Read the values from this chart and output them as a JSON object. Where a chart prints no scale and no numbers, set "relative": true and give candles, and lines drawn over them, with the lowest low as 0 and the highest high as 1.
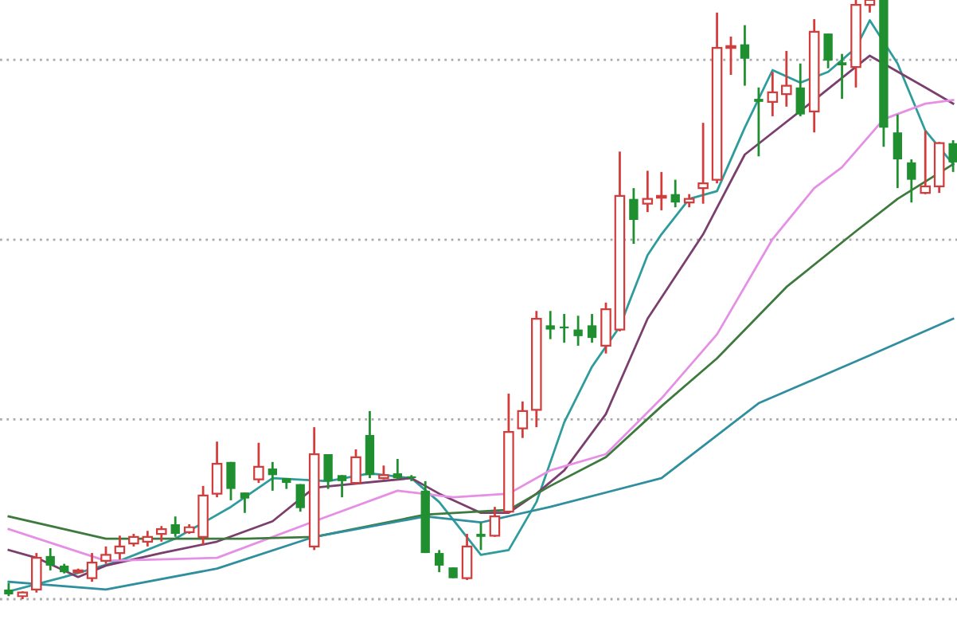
{
  "chart_data": {
    "type": "candlestick",
    "relative": true,
    "grid": "y",
    "categories": [
      null,
      null,
      null,
      null,
      null,
      null,
      null,
      null,
      null,
      null,
      null,
      null,
      null,
      null,
      null,
      null,
      null,
      null,
      null,
      null,
      null,
      null,
      null,
      null,
      null,
      null,
      null,
      null,
      null,
      null,
      null,
      null,
      null,
      null,
      null,
      null,
      null,
      null,
      null,
      null,
      null,
      null,
      null,
      null,
      null,
      null,
      null,
      null,
      null,
      null,
      null,
      null,
      null,
      null,
      null,
      null,
      null,
      null,
      null,
      null,
      null,
      null,
      null,
      null,
      null,
      null,
      null,
      null,
      null
    ],
    "ohlc": [
      [
        0.016,
        0.027,
        0.005,
        0.008
      ],
      [
        0.005,
        0.013,
        0,
        0.011
      ],
      [
        0.016,
        0.077,
        0.011,
        0.069
      ],
      [
        0.072,
        0.085,
        0.048,
        0.056
      ],
      [
        0.056,
        0.059,
        0.043,
        0.045
      ],
      [
        0.045,
        0.051,
        0.043,
        0.048
      ],
      [
        0.035,
        0.077,
        0.029,
        0.061
      ],
      [
        0.064,
        0.088,
        0.059,
        0.074
      ],
      [
        0.077,
        0.106,
        0.066,
        0.088
      ],
      [
        0.093,
        0.109,
        0.088,
        0.104
      ],
      [
        0.096,
        0.114,
        0.088,
        0.104
      ],
      [
        0.109,
        0.122,
        0.096,
        0.117
      ],
      [
        0.125,
        0.138,
        0.104,
        0.109
      ],
      [
        0.112,
        0.125,
        0.109,
        0.12
      ],
      [
        0.104,
        0.189,
        0.09,
        0.173
      ],
      [
        0.176,
        0.263,
        0.17,
        0.226
      ],
      [
        0.229,
        0.229,
        0.165,
        0.184
      ],
      [
        0.178,
        0.178,
        0.144,
        0.168
      ],
      [
        0.2,
        0.261,
        0.194,
        0.221
      ],
      [
        0.218,
        0.229,
        0.181,
        0.207
      ],
      [
        0.202,
        0.202,
        0.184,
        0.194
      ],
      [
        0.192,
        0.192,
        0.146,
        0.152
      ],
      [
        0.088,
        0.287,
        0.082,
        0.242
      ],
      [
        0.242,
        0.242,
        0.184,
        0.197
      ],
      [
        0.207,
        0.207,
        0.17,
        0.197
      ],
      [
        0.194,
        0.25,
        0.192,
        0.237
      ],
      [
        0.274,
        0.314,
        0.202,
        0.207
      ],
      [
        0.202,
        0.223,
        0.2,
        0.207
      ],
      [
        0.21,
        0.234,
        0.2,
        0.202
      ],
      [
        0.205,
        0.207,
        0.197,
        0.202
      ],
      [
        0.181,
        0.197,
        0.077,
        0.077
      ],
      [
        0.077,
        0.082,
        0.045,
        0.056
      ],
      [
        0.053,
        0.053,
        0.035,
        0.035
      ],
      [
        0.035,
        0.109,
        0.032,
        0.088
      ],
      [
        0.109,
        0.128,
        0.082,
        0.104
      ],
      [
        0.106,
        0.154,
        0.104,
        0.138
      ],
      [
        0.146,
        0.343,
        0.144,
        0.279
      ],
      [
        0.285,
        0.33,
        0.269,
        0.314
      ],
      [
        0.316,
        0.481,
        0.287,
        0.468
      ],
      [
        0.457,
        0.481,
        0.434,
        0.45
      ],
      [
        0.455,
        0.476,
        0.428,
        0.452
      ],
      [
        0.45,
        0.473,
        0.423,
        0.439
      ],
      [
        0.457,
        0.476,
        0.428,
        0.436
      ],
      [
        0.423,
        0.495,
        0.41,
        0.484
      ],
      [
        0.45,
        0.747,
        0.447,
        0.673
      ],
      [
        0.668,
        0.686,
        0.593,
        0.633
      ],
      [
        0.66,
        0.715,
        0.646,
        0.668
      ],
      [
        0.67,
        0.713,
        0.649,
        0.673
      ],
      [
        0.676,
        0.7,
        0.654,
        0.662
      ],
      [
        0.662,
        0.676,
        0.654,
        0.668
      ],
      [
        0.686,
        0.795,
        0.66,
        0.694
      ],
      [
        0.7,
        0.979,
        0.694,
        0.92
      ],
      [
        0.92,
        0.939,
        0.875,
        0.923
      ],
      [
        0.926,
        0.958,
        0.857,
        0.902
      ],
      [
        0.835,
        0.854,
        0.739,
        0.83
      ],
      [
        0.83,
        0.88,
        0.806,
        0.846
      ],
      [
        0.843,
        0.915,
        0.822,
        0.857
      ],
      [
        0.854,
        0.894,
        0.806,
        0.809
      ],
      [
        0.814,
        0.968,
        0.779,
        0.947
      ],
      [
        0.944,
        0.944,
        0.886,
        0.899
      ],
      [
        0.896,
        0.91,
        0.835,
        0.891
      ],
      [
        0.888,
        1,
        0.854,
        0.992
      ],
      [
        0.992,
        1,
        0.979,
        1
      ],
      [
        1,
        1,
        0.755,
        0.787
      ],
      [
        0.779,
        0.809,
        0.686,
        0.734
      ],
      [
        0.729,
        0.734,
        0.662,
        0.7
      ],
      [
        0.678,
        0.782,
        0.676,
        0.689
      ],
      [
        0.689,
        0.763,
        0.678,
        0.761
      ],
      [
        0.761,
        0.766,
        0.713,
        0.729
      ]
    ],
    "series": [
      {
        "type": "line",
        "color": "#2e9c9c",
        "values": [
          0.013,
          null,
          null,
          null,
          0.037,
          null,
          null,
          null,
          0.064,
          null,
          null,
          null,
          0.101,
          null,
          null,
          null,
          0.154,
          null,
          null,
          0.202,
          null,
          null,
          null,
          0.197,
          null,
          null,
          0.21,
          null,
          null,
          0.202,
          null,
          0.162,
          null,
          null,
          0.074,
          null,
          0.082,
          null,
          0.162,
          null,
          0.295,
          null,
          0.388,
          null,
          0.455,
          null,
          0.574,
          0.609,
          null,
          0.668,
          null,
          0.681,
          null,
          0.787,
          null,
          0.883,
          null,
          0.862,
          null,
          0.88,
          null,
          0.92,
          0.966,
          null,
          0.894,
          null,
          0.782,
          null,
          0.726
        ]
      },
      {
        "type": "line",
        "color": "#7b3f6e",
        "values": [
          0.082,
          null,
          0.069,
          null,
          null,
          0.037,
          null,
          0.056,
          null,
          null,
          null,
          0.077,
          null,
          null,
          null,
          0.096,
          null,
          null,
          null,
          0.13,
          null,
          null,
          0.186,
          null,
          null,
          null,
          null,
          null,
          null,
          0.202,
          null,
          0.176,
          null,
          null,
          0.144,
          null,
          0.144,
          null,
          0.176,
          null,
          0.215,
          null,
          null,
          0.309,
          null,
          null,
          0.468,
          null,
          null,
          null,
          0.609,
          null,
          null,
          0.742,
          null,
          null,
          null,
          null,
          0.833,
          null,
          null,
          null,
          0.907,
          null,
          null,
          null,
          0.854,
          null,
          0.827
        ]
      },
      {
        "type": "line",
        "color": "#e58fe5",
        "values": [
          0.117,
          null,
          null,
          null,
          null,
          null,
          null,
          0.064,
          null,
          null,
          null,
          null,
          null,
          null,
          null,
          0.069,
          null,
          null,
          null,
          null,
          null,
          null,
          0.13,
          null,
          null,
          null,
          null,
          null,
          0.181,
          null,
          null,
          null,
          0.17,
          null,
          null,
          null,
          0.176,
          null,
          null,
          0.215,
          null,
          null,
          null,
          0.242,
          null,
          null,
          null,
          0.335,
          null,
          null,
          null,
          0.442,
          null,
          null,
          null,
          0.601,
          null,
          null,
          0.686,
          null,
          0.721,
          null,
          null,
          0.801,
          null,
          null,
          0.827,
          null,
          0.833
        ]
      },
      {
        "type": "line",
        "color": "#3d7a3d",
        "values": [
          0.138,
          null,
          null,
          null,
          null,
          null,
          null,
          0.101,
          null,
          null,
          null,
          null,
          null,
          null,
          null,
          null,
          null,
          0.101,
          null,
          null,
          null,
          null,
          0.104,
          null,
          null,
          null,
          null,
          null,
          null,
          null,
          0.141,
          null,
          null,
          null,
          null,
          null,
          0.149,
          null,
          null,
          0.189,
          null,
          null,
          null,
          0.237,
          null,
          null,
          null,
          0.322,
          null,
          null,
          null,
          0.402,
          null,
          null,
          null,
          null,
          0.521,
          null,
          null,
          null,
          null,
          0.614,
          null,
          null,
          0.668,
          null,
          null,
          null,
          0.726
        ]
      },
      {
        "type": "line",
        "color": "#2f8f9f",
        "values": [
          0.029,
          null,
          null,
          null,
          null,
          null,
          null,
          0.016,
          null,
          null,
          null,
          null,
          null,
          null,
          null,
          0.051,
          null,
          null,
          null,
          null,
          null,
          null,
          0.104,
          null,
          null,
          null,
          null,
          null,
          null,
          null,
          0.138,
          null,
          null,
          null,
          0.128,
          null,
          null,
          null,
          null,
          0.154,
          null,
          null,
          null,
          null,
          null,
          null,
          null,
          0.202,
          null,
          null,
          null,
          null,
          null,
          null,
          0.327,
          null,
          null,
          null,
          null,
          null,
          null,
          null,
          0.407,
          null,
          null,
          null,
          null,
          null,
          0.468
        ]
      }
    ]
  }
}
